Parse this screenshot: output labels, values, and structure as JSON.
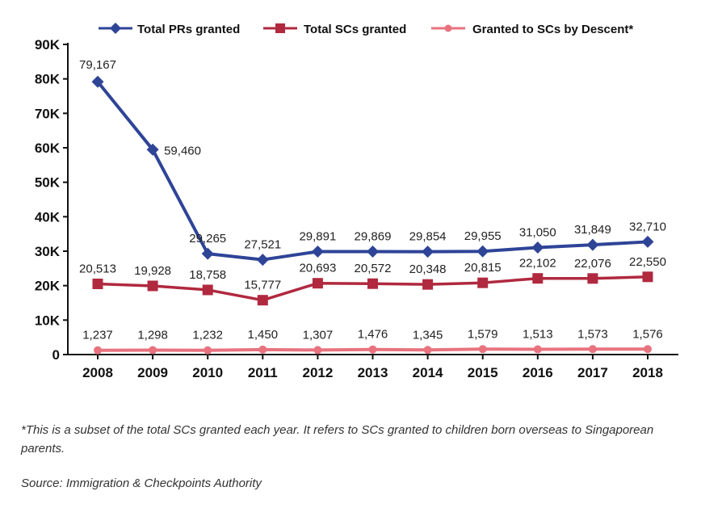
{
  "chart_data": {
    "type": "line",
    "categories": [
      "2008",
      "2009",
      "2010",
      "2011",
      "2012",
      "2013",
      "2014",
      "2015",
      "2016",
      "2017",
      "2018"
    ],
    "ylim": [
      0,
      90000
    ],
    "yticks": [
      0,
      10000,
      20000,
      30000,
      40000,
      50000,
      60000,
      70000,
      80000,
      90000
    ],
    "ytick_labels": [
      "0",
      "10K",
      "20K",
      "30K",
      "40K",
      "50K",
      "60K",
      "70K",
      "80K",
      "90K"
    ],
    "grid": false,
    "legend_position": "top",
    "series": [
      {
        "name": "Total PRs granted",
        "color": "#2e4497",
        "marker": "diamond",
        "values": [
          79167,
          59460,
          29265,
          27521,
          29891,
          29869,
          29854,
          29955,
          31050,
          31849,
          32710
        ],
        "labels": [
          "79,167",
          "59,460",
          "29,265",
          "27,521",
          "29,891",
          "29,869",
          "29,854",
          "29,955",
          "31,050",
          "31,849",
          "32,710"
        ]
      },
      {
        "name": "Total SCs granted",
        "color": "#b0293f",
        "marker": "square",
        "values": [
          20513,
          19928,
          18758,
          15777,
          20693,
          20572,
          20348,
          20815,
          22102,
          22076,
          22550
        ],
        "labels": [
          "20,513",
          "19,928",
          "18,758",
          "15,777",
          "20,693",
          "20,572",
          "20,348",
          "20,815",
          "22,102",
          "22,076",
          "22,550"
        ]
      },
      {
        "name": "Granted to SCs by Descent*",
        "color": "#e8737f",
        "marker": "circle",
        "values": [
          1237,
          1298,
          1232,
          1450,
          1307,
          1476,
          1345,
          1579,
          1513,
          1573,
          1576
        ],
        "labels": [
          "1,237",
          "1,298",
          "1,232",
          "1,450",
          "1,307",
          "1,476",
          "1,345",
          "1,579",
          "1,513",
          "1,573",
          "1,576"
        ]
      }
    ]
  },
  "footnote": "*This is a subset of the total SCs granted each year. It refers to SCs granted to children born overseas to Singaporean parents.",
  "source": "Source: Immigration & Checkpoints Authority"
}
